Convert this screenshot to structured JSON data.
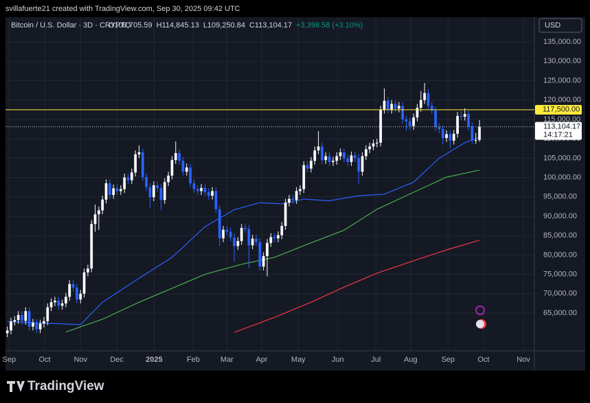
{
  "chart_data": {
    "type": "candlestick",
    "credit": "svillafuerte21 created with TradingView.com, Sep 30, 2025 09:42 UTC",
    "title": "Bitcoin / U.S. Dollar · 3D · CRYPTO",
    "ohlc_labels": [
      "O109,705.59",
      "H114,845.13",
      "L109,250.84",
      "C113,104.17",
      "+3,398.58 (+3.10%)"
    ],
    "currency": "USD",
    "brand": "TradingView",
    "up_color": "#ffffff",
    "down_color": "#2962ff",
    "grid": true,
    "categories": [
      null,
      null,
      null,
      null,
      null,
      null,
      null,
      null,
      null,
      null,
      null,
      null,
      null,
      null,
      null,
      null,
      null,
      null,
      null,
      null,
      null,
      null,
      null,
      null,
      null,
      null,
      null,
      null,
      null,
      null,
      null,
      null,
      null,
      null,
      null,
      null,
      null,
      null,
      null,
      null,
      null,
      null,
      null,
      null,
      null,
      null,
      null,
      null,
      null,
      null,
      null,
      null,
      null,
      null,
      null,
      null,
      null,
      null,
      null,
      null,
      null,
      null,
      null,
      null,
      null,
      null,
      null,
      null,
      null,
      null,
      null,
      null,
      null,
      null,
      null,
      null,
      null,
      null,
      null,
      null,
      null,
      null,
      null,
      null,
      null,
      null,
      null,
      null,
      null,
      null,
      null,
      null,
      null,
      null,
      null,
      null,
      null,
      null,
      null,
      null,
      null,
      null,
      null,
      null,
      null,
      null,
      null,
      null,
      null,
      null,
      null,
      null,
      null,
      null,
      null,
      null,
      null,
      null,
      null,
      null,
      null,
      null,
      null,
      null,
      null,
      null,
      null,
      null,
      null,
      null
    ],
    "candles": {
      "open": [
        59800,
        60500,
        62800,
        63200,
        64500,
        63000,
        65500,
        61500,
        62500,
        60800,
        62300,
        62900,
        66500,
        67800,
        68200,
        66900,
        67500,
        69200,
        72500,
        71600,
        68500,
        70000,
        75500,
        76500,
        88000,
        90500,
        91500,
        94300,
        98500,
        95500,
        97200,
        96500,
        97000,
        100000,
        99300,
        101300,
        106000,
        106500,
        100100,
        97500,
        94900,
        98000,
        97300,
        94200,
        98800,
        100500,
        104500,
        106300,
        104300,
        101500,
        102600,
        98500,
        97000,
        96500,
        97300,
        96200,
        95300,
        96500,
        91800,
        84300,
        86500,
        86000,
        84500,
        82300,
        83600,
        87000,
        86700,
        82500,
        84200,
        83300,
        77000,
        79700,
        83100,
        84600,
        84300,
        85100,
        87500,
        93500,
        94500,
        94200,
        96500,
        97000,
        103200,
        102300,
        104300,
        107000,
        108000,
        104500,
        105500,
        104000,
        104300,
        105500,
        106500,
        104900,
        104000,
        105700,
        105000,
        101500,
        105500,
        107300,
        108000,
        108800,
        109000,
        117500,
        119800,
        117500,
        119000,
        117800,
        118500,
        115000,
        114500,
        113300,
        115500,
        118000,
        120000,
        121800,
        118500,
        117300,
        113000,
        112500,
        110200,
        111200,
        109500,
        111300,
        115900,
        115700,
        116400,
        113200,
        109700,
        109705.59
      ],
      "high": [
        61500,
        63800,
        64200,
        65500,
        65500,
        66500,
        66500,
        63500,
        63500,
        63300,
        64000,
        67500,
        68800,
        69200,
        69200,
        68500,
        70200,
        73500,
        73500,
        72600,
        71000,
        76500,
        77500,
        89000,
        93000,
        92500,
        95300,
        99500,
        99500,
        98200,
        98200,
        98000,
        101000,
        101000,
        102300,
        107000,
        108300,
        107500,
        101100,
        98500,
        99000,
        99000,
        98300,
        99800,
        101500,
        105500,
        109300,
        107300,
        105300,
        103600,
        103600,
        99500,
        98000,
        98300,
        98300,
        97200,
        97500,
        97500,
        92800,
        87500,
        87500,
        87000,
        85500,
        84600,
        88000,
        88000,
        87700,
        85200,
        85200,
        84300,
        80700,
        84100,
        85600,
        85600,
        86100,
        88500,
        94500,
        95500,
        95500,
        97500,
        98000,
        104200,
        104200,
        105300,
        108000,
        112000,
        109000,
        106500,
        106500,
        105300,
        106500,
        107500,
        107500,
        105900,
        106700,
        106700,
        106000,
        106500,
        108300,
        109000,
        109800,
        110000,
        118500,
        123000,
        120800,
        120000,
        120000,
        119500,
        119500,
        116000,
        115500,
        116500,
        119000,
        122300,
        124400,
        122800,
        119500,
        118300,
        114000,
        113500,
        112200,
        112200,
        112300,
        116900,
        117200,
        117900,
        117400,
        114200,
        111500,
        114845.13
      ],
      "low": [
        58800,
        59500,
        61800,
        62200,
        62000,
        62000,
        60500,
        60500,
        59800,
        59800,
        61300,
        61900,
        65500,
        66800,
        65900,
        65900,
        66500,
        68200,
        70600,
        67500,
        67500,
        69000,
        74500,
        75500,
        86000,
        86500,
        90500,
        93300,
        94500,
        94500,
        95500,
        95500,
        96000,
        98300,
        98300,
        100300,
        105000,
        99100,
        96500,
        92200,
        93900,
        96300,
        91500,
        93200,
        97800,
        99500,
        103500,
        103300,
        100500,
        100500,
        97500,
        96000,
        95500,
        95500,
        95200,
        94300,
        94300,
        90800,
        82300,
        83300,
        85000,
        83500,
        78200,
        81300,
        82600,
        85700,
        76600,
        81500,
        82300,
        76000,
        76000,
        74500,
        82100,
        83300,
        83300,
        84100,
        86500,
        92500,
        93200,
        93200,
        95500,
        96000,
        101300,
        101300,
        103300,
        106000,
        103500,
        103500,
        103000,
        103000,
        103300,
        104500,
        103900,
        103000,
        103000,
        104000,
        98200,
        100500,
        104500,
        106300,
        107000,
        107800,
        108000,
        116500,
        116500,
        116500,
        116800,
        116800,
        114000,
        112000,
        112300,
        112300,
        114500,
        117000,
        119000,
        117500,
        116300,
        112000,
        111500,
        108500,
        109200,
        107500,
        108500,
        110300,
        114700,
        114700,
        112200,
        108700,
        108700,
        109250.84
      ],
      "close": [
        60500,
        62800,
        63200,
        64500,
        63000,
        65500,
        61500,
        62500,
        60800,
        62300,
        62900,
        66500,
        67800,
        68200,
        66900,
        67500,
        69200,
        72500,
        71600,
        68500,
        70000,
        75500,
        76500,
        88000,
        90500,
        91500,
        94300,
        98500,
        95500,
        97200,
        96500,
        97000,
        100000,
        99300,
        101300,
        106000,
        106500,
        100100,
        97500,
        94900,
        98000,
        97300,
        94200,
        98800,
        100500,
        104500,
        106300,
        104300,
        101500,
        102600,
        98500,
        97000,
        96500,
        97300,
        96200,
        95300,
        96500,
        91800,
        84300,
        86500,
        86000,
        84500,
        82300,
        83600,
        87000,
        86700,
        82500,
        84200,
        83300,
        77000,
        79700,
        83100,
        84600,
        84300,
        85100,
        87500,
        93500,
        94500,
        94200,
        96500,
        97000,
        103200,
        102300,
        104300,
        107000,
        108000,
        104500,
        105500,
        104000,
        104300,
        105500,
        106500,
        104900,
        104000,
        105700,
        105000,
        101500,
        105500,
        107300,
        108000,
        108800,
        109000,
        117500,
        119800,
        117500,
        119000,
        117800,
        118500,
        115000,
        114500,
        113300,
        115500,
        118000,
        120000,
        121800,
        118500,
        117300,
        113000,
        112500,
        110200,
        111200,
        109500,
        111300,
        115900,
        115700,
        116400,
        113200,
        109700,
        109700,
        113104.17
      ]
    },
    "series": [
      {
        "color": "#2962ff",
        "x": [
          0,
          20,
          26,
          36,
          45,
          54,
          62,
          69,
          75,
          81,
          88,
          96,
          103,
          111,
          118,
          125,
          129
        ],
        "values": [
          62800,
          62000,
          67800,
          74000,
          79400,
          87300,
          91700,
          93500,
          93200,
          94400,
          94000,
          95300,
          95700,
          98800,
          105000,
          109000,
          110400
        ]
      },
      {
        "color": "#4caf50",
        "x": [
          16,
          26,
          36,
          45,
          54,
          64,
          73,
          81,
          92,
          101,
          111,
          120,
          129
        ],
        "values": [
          60100,
          63400,
          67800,
          71400,
          75000,
          77600,
          79400,
          82400,
          86400,
          91800,
          96200,
          100100,
          101900
        ]
      },
      {
        "color": "#f23645",
        "x": [
          62,
          73,
          83,
          92,
          101,
          111,
          120,
          129
        ],
        "values": [
          60000,
          63900,
          67800,
          71700,
          75300,
          78500,
          81300,
          83800
        ]
      }
    ],
    "hline": {
      "value": 117500,
      "label": "117,500.00",
      "color": "#ffeb3b"
    },
    "last_price_label": "113,104.17",
    "countdown": "14:17:21",
    "xlim": [
      -0.5,
      144
    ],
    "xticks": [
      {
        "value": 0.5,
        "label": "Sep"
      },
      {
        "value": 10.2,
        "label": "Oct"
      },
      {
        "value": 20,
        "label": "Nov"
      },
      {
        "value": 29.9,
        "label": "Dec"
      },
      {
        "value": 40.1,
        "label": "2025"
      },
      {
        "value": 50.8,
        "label": "Feb"
      },
      {
        "value": 60,
        "label": "Mar"
      },
      {
        "value": 69.5,
        "label": "Apr"
      },
      {
        "value": 79.5,
        "label": "May"
      },
      {
        "value": 90.3,
        "label": "Jun"
      },
      {
        "value": 100.7,
        "label": "Jul"
      },
      {
        "value": 110.2,
        "label": "Aug"
      },
      {
        "value": 120.4,
        "label": "Sep"
      },
      {
        "value": 130.1,
        "label": "Oct"
      },
      {
        "value": 141,
        "label": "Nov"
      }
    ],
    "ylim": [
      55250,
      141400
    ],
    "yticks": [
      {
        "value": 65000,
        "label": "65,000.00"
      },
      {
        "value": 70000,
        "label": "70,000.00"
      },
      {
        "value": 75000,
        "label": "75,000.00"
      },
      {
        "value": 80000,
        "label": "80,000.00"
      },
      {
        "value": 85000,
        "label": "85,000.00"
      },
      {
        "value": 90000,
        "label": "90,000.00"
      },
      {
        "value": 95000,
        "label": "95,000.00"
      },
      {
        "value": 100000,
        "label": "100,000.00"
      },
      {
        "value": 105000,
        "label": "105,000.00"
      },
      {
        "value": 110000,
        "label": "110,000.00"
      },
      {
        "value": 115000,
        "label": "115,000.00"
      },
      {
        "value": 120000,
        "label": "120,000.00"
      },
      {
        "value": 125000,
        "label": "125,000.00"
      },
      {
        "value": 130000,
        "label": "130,000.00"
      },
      {
        "value": 135000,
        "label": "135,000.00"
      }
    ]
  }
}
